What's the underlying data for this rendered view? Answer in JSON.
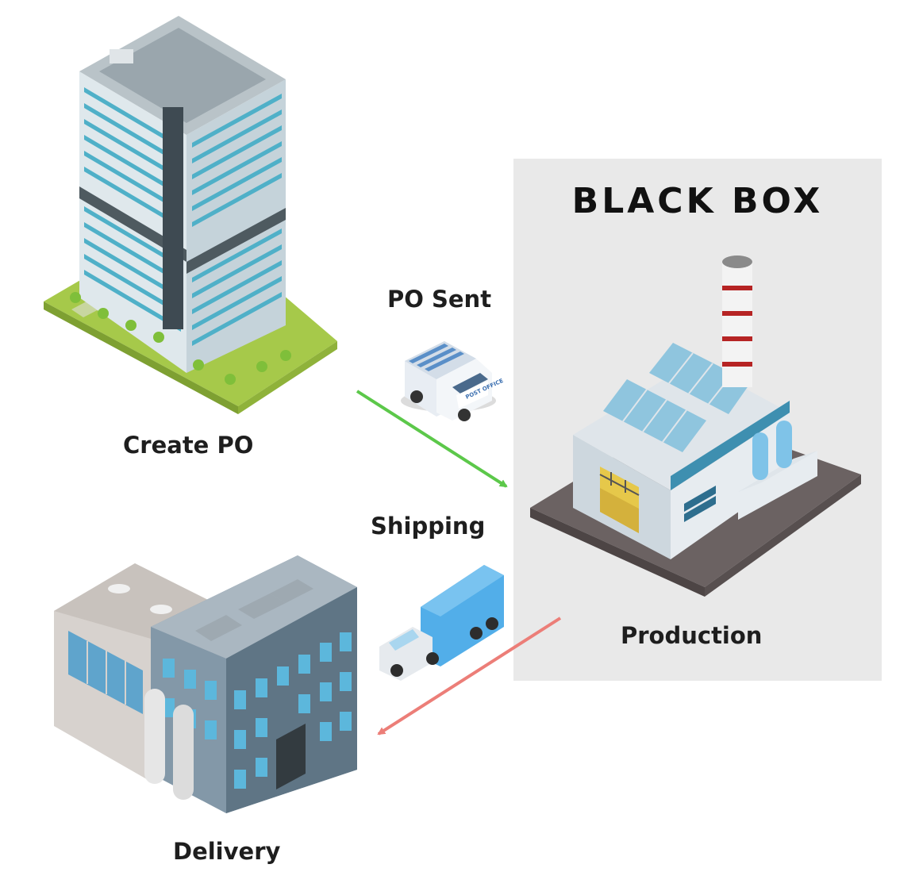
{
  "black_box": {
    "title": "BLACK BOX"
  },
  "steps": {
    "create_po": "Create PO",
    "po_sent": "PO Sent",
    "production": "Production",
    "shipping": "Shipping",
    "delivery": "Delivery"
  },
  "van": {
    "side_text": "POST OFFICE"
  },
  "colors": {
    "po_sent_arrow": "#5cc84a",
    "shipping_arrow": "#ec7e78",
    "black_box_bg": "#e9e9e9"
  }
}
